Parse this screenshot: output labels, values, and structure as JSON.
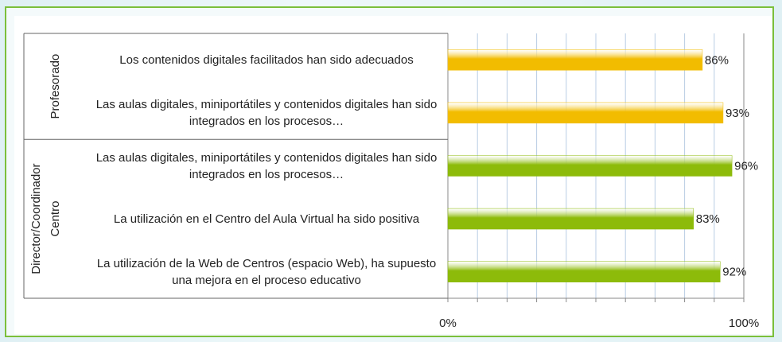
{
  "chart_data": {
    "type": "bar",
    "orientation": "horizontal",
    "groups": [
      {
        "label_lines": [
          "Profesorado"
        ],
        "start": 0,
        "count": 2,
        "color": "#f2bc00"
      },
      {
        "label_lines": [
          "Director/Coordinador",
          "Centro"
        ],
        "start": 2,
        "count": 3,
        "color": "#8dbb0a"
      }
    ],
    "categories": [
      "Los contenidos digitales facilitados han sido adecuados",
      "Las aulas digitales, miniportátiles y contenidos digitales han sido integrados en los procesos…",
      "Las aulas digitales, miniportátiles y contenidos digitales han sido integrados en los procesos…",
      "La utilización en el Centro del Aula Virtual ha sido positiva",
      "La utilización de la Web de Centros (espacio Web), ha supuesto una mejora en el proceso educativo"
    ],
    "values": [
      86,
      93,
      96,
      83,
      92
    ],
    "value_labels": [
      "86%",
      "93%",
      "96%",
      "83%",
      "92%"
    ],
    "xlim": [
      0,
      100
    ],
    "xticks": [
      {
        "value": 0,
        "label": "0%"
      },
      {
        "value": 100,
        "label": "100%"
      }
    ],
    "minor_xticks": [
      10,
      20,
      30,
      40,
      50,
      60,
      70,
      80,
      90
    ],
    "grid": true
  }
}
